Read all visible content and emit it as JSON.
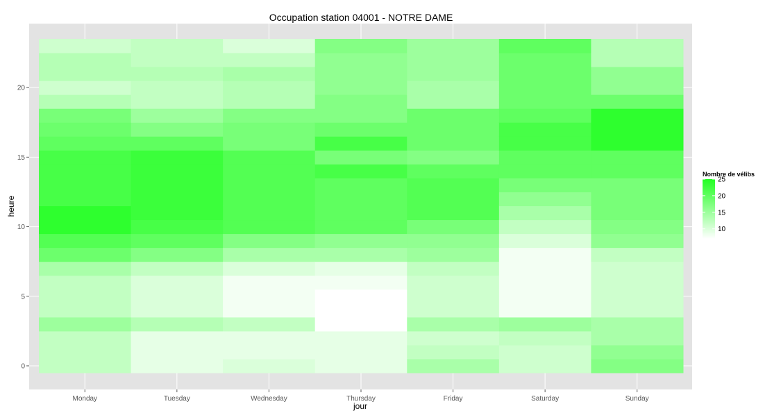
{
  "chart_data": {
    "type": "heatmap",
    "title": "Occupation station 04001 - NOTRE DAME",
    "xlabel": "jour",
    "ylabel": "heure",
    "x_categories": [
      "Monday",
      "Tuesday",
      "Wednesday",
      "Thursday",
      "Friday",
      "Saturday",
      "Sunday"
    ],
    "y_hours": [
      0,
      1,
      2,
      3,
      4,
      5,
      6,
      7,
      8,
      9,
      10,
      11,
      12,
      13,
      14,
      15,
      16,
      17,
      18,
      19,
      20,
      21,
      22,
      23
    ],
    "ylim": [
      -0.5,
      23.5
    ],
    "y_ticks": [
      0,
      5,
      10,
      15,
      20
    ],
    "grid": true,
    "values": [
      [
        12,
        12,
        12,
        15,
        12,
        12,
        12,
        14,
        19,
        21,
        24,
        24,
        22,
        22,
        22,
        22,
        20,
        19,
        18,
        13,
        11,
        13,
        13,
        11
      ],
      [
        9,
        9,
        9,
        13,
        10,
        10,
        10,
        12,
        17,
        20,
        22,
        23,
        23,
        23,
        23,
        23,
        20,
        17,
        15,
        12,
        12,
        13,
        12,
        12
      ],
      [
        10,
        9,
        9,
        12,
        8,
        8,
        8,
        10,
        14,
        17,
        21,
        21,
        21,
        21,
        21,
        21,
        18,
        18,
        17,
        13,
        13,
        14,
        12,
        10
      ],
      [
        9,
        9,
        9,
        7,
        7,
        7,
        8,
        9,
        14,
        16,
        20,
        20,
        20,
        20,
        22,
        18,
        22,
        19,
        17,
        17,
        16,
        16,
        16,
        17
      ],
      [
        14,
        12,
        11,
        14,
        11,
        11,
        11,
        12,
        15,
        16,
        18,
        21,
        21,
        21,
        20,
        17,
        19,
        19,
        19,
        14,
        14,
        15,
        15,
        15
      ],
      [
        11,
        11,
        12,
        15,
        8,
        8,
        8,
        8,
        8,
        10,
        12,
        14,
        16,
        18,
        20,
        20,
        22,
        22,
        20,
        19,
        19,
        19,
        19,
        20
      ],
      [
        17,
        16,
        14,
        14,
        11,
        11,
        11,
        11,
        12,
        16,
        17,
        18,
        18,
        18,
        20,
        20,
        24,
        24,
        24,
        19,
        16,
        16,
        13,
        13
      ]
    ],
    "legend": {
      "title": "Nombre de vélibs",
      "ticks": [
        25,
        20,
        15,
        10
      ],
      "min": 7,
      "max": 25,
      "low_color": "#ffffff",
      "high_color": "#22ff22",
      "placement": "right"
    },
    "panel_background": "#e3e3e3",
    "grid_color": "#ffffff",
    "tick_label_color": "#555555"
  }
}
